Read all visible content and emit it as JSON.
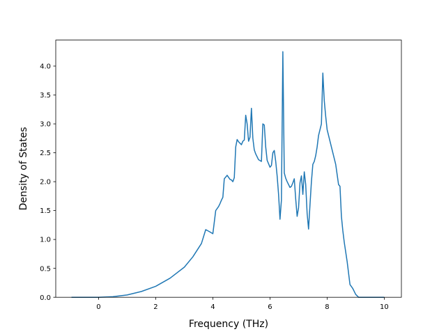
{
  "chart_data": {
    "type": "line",
    "title": "",
    "xlabel": "Frequency (THz)",
    "ylabel": "Density of States",
    "xlim": [
      -1.5,
      10.6
    ],
    "ylim": [
      0.0,
      4.45
    ],
    "xticks": [
      0,
      2,
      4,
      6,
      8,
      10
    ],
    "xtick_labels": [
      "0",
      "2",
      "4",
      "6",
      "8",
      "10"
    ],
    "yticks": [
      0.0,
      0.5,
      1.0,
      1.5,
      2.0,
      2.5,
      3.0,
      3.5,
      4.0
    ],
    "ytick_labels": [
      "0.0",
      "0.5",
      "1.0",
      "1.5",
      "2.0",
      "2.5",
      "3.0",
      "3.5",
      "4.0"
    ],
    "grid": false,
    "legend": "none",
    "series": [
      {
        "color": "#1f77b4",
        "x": [
          -0.95,
          0.0,
          0.5,
          1.0,
          1.5,
          2.0,
          2.5,
          3.0,
          3.3,
          3.6,
          3.75,
          3.9,
          4.0,
          4.1,
          4.2,
          4.25,
          4.3,
          4.35,
          4.4,
          4.5,
          4.6,
          4.65,
          4.7,
          4.75,
          4.8,
          4.85,
          4.9,
          5.0,
          5.05,
          5.1,
          5.15,
          5.2,
          5.25,
          5.3,
          5.35,
          5.4,
          5.45,
          5.5,
          5.6,
          5.7,
          5.75,
          5.8,
          5.85,
          5.9,
          6.0,
          6.05,
          6.1,
          6.15,
          6.2,
          6.25,
          6.3,
          6.35,
          6.4,
          6.45,
          6.5,
          6.55,
          6.6,
          6.7,
          6.75,
          6.8,
          6.85,
          6.9,
          6.95,
          7.0,
          7.05,
          7.1,
          7.15,
          7.2,
          7.25,
          7.3,
          7.35,
          7.4,
          7.45,
          7.5,
          7.55,
          7.6,
          7.65,
          7.7,
          7.8,
          7.85,
          7.9,
          7.95,
          8.0,
          8.1,
          8.2,
          8.3,
          8.4,
          8.45,
          8.5,
          8.55,
          8.6,
          8.7,
          8.8,
          8.9,
          9.0,
          9.1,
          9.2,
          10.0
        ],
        "values": [
          0.0,
          0.0,
          0.01,
          0.04,
          0.1,
          0.19,
          0.33,
          0.52,
          0.7,
          0.93,
          1.17,
          1.13,
          1.1,
          1.5,
          1.57,
          1.62,
          1.68,
          1.73,
          2.05,
          2.11,
          2.04,
          2.03,
          2.0,
          2.07,
          2.6,
          2.73,
          2.69,
          2.64,
          2.7,
          2.72,
          3.15,
          3.0,
          2.7,
          2.77,
          3.27,
          2.75,
          2.55,
          2.48,
          2.38,
          2.35,
          3.0,
          2.98,
          2.6,
          2.37,
          2.25,
          2.28,
          2.5,
          2.54,
          2.35,
          2.1,
          1.78,
          1.35,
          1.68,
          4.25,
          2.15,
          2.06,
          2.0,
          1.9,
          1.92,
          1.98,
          2.05,
          1.7,
          1.4,
          1.55,
          1.98,
          2.1,
          1.78,
          2.17,
          1.95,
          1.45,
          1.18,
          1.6,
          2.0,
          2.3,
          2.35,
          2.45,
          2.6,
          2.8,
          3.0,
          3.88,
          3.4,
          3.13,
          2.9,
          2.7,
          2.5,
          2.3,
          1.95,
          1.92,
          1.4,
          1.15,
          0.95,
          0.62,
          0.22,
          0.15,
          0.05,
          0.0,
          0.0,
          0.0
        ]
      }
    ]
  }
}
